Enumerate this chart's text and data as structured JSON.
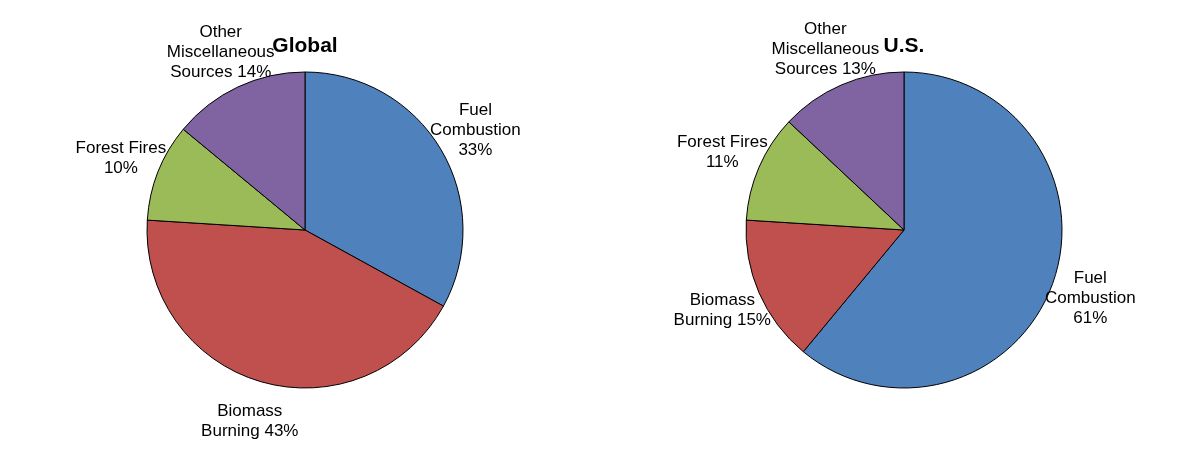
{
  "chart_data": [
    {
      "type": "pie",
      "title": "Global",
      "categories": [
        "Fuel Combustion",
        "Biomass Burning",
        "Forest Fires",
        "Other Miscellaneous Sources"
      ],
      "values": [
        33,
        43,
        10,
        14
      ],
      "value_labels": [
        "33%",
        "43%",
        "10%",
        "14%"
      ],
      "colors": [
        "#4f81bd",
        "#c0504d",
        "#9bbb59",
        "#8064a2"
      ]
    },
    {
      "type": "pie",
      "title": "U.S.",
      "categories": [
        "Fuel Combustion",
        "Biomass Burning",
        "Forest Fires",
        "Other Miscellaneous Sources"
      ],
      "values": [
        61,
        15,
        11,
        13
      ],
      "value_labels": [
        "61%",
        "15%",
        "11%",
        "13%"
      ],
      "colors": [
        "#4f81bd",
        "#c0504d",
        "#9bbb59",
        "#8064a2"
      ]
    }
  ]
}
